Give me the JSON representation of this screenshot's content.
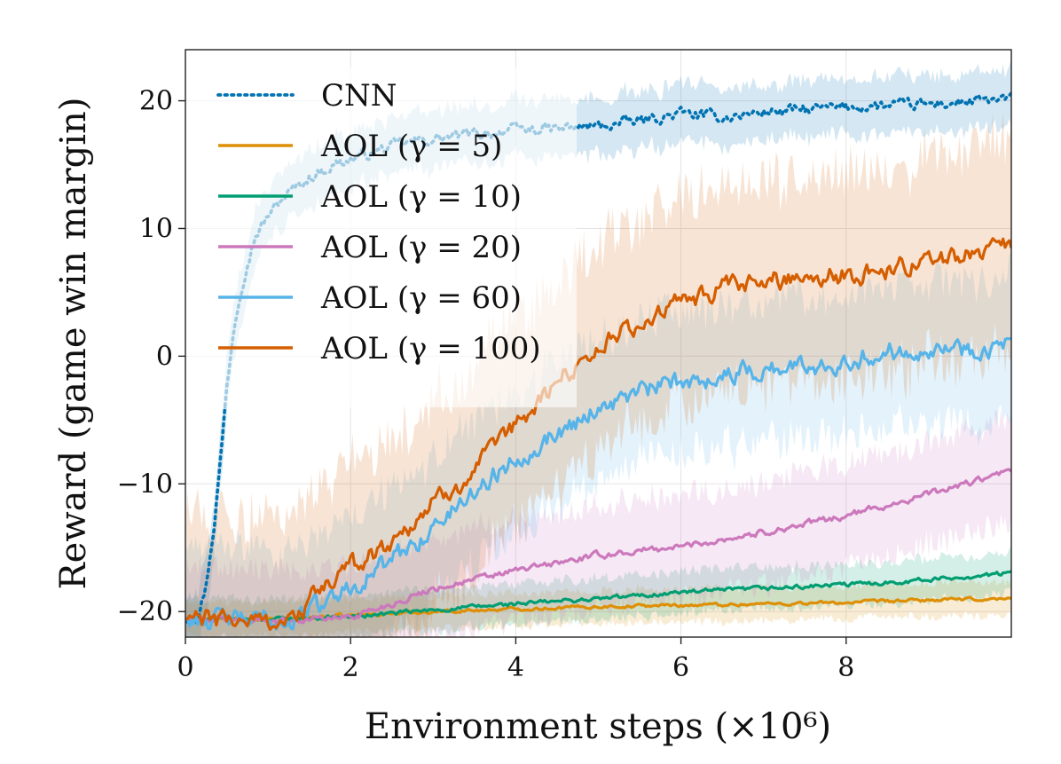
{
  "chart_data": {
    "type": "line",
    "title": "",
    "xlabel": "Environment steps (×10⁶)",
    "ylabel": "Reward (game win margin)",
    "xlim": [
      0,
      10
    ],
    "ylim": [
      -22,
      24
    ],
    "xticks": [
      {
        "value": 0,
        "label": "0"
      },
      {
        "value": 2,
        "label": "2"
      },
      {
        "value": 4,
        "label": "4"
      },
      {
        "value": 6,
        "label": "6"
      },
      {
        "value": 8,
        "label": "8"
      }
    ],
    "yticks": [
      {
        "value": -20,
        "label": "−20"
      },
      {
        "value": -10,
        "label": "−10"
      },
      {
        "value": 0,
        "label": "0"
      },
      {
        "value": 10,
        "label": "10"
      },
      {
        "value": 20,
        "label": "20"
      }
    ],
    "grid": true,
    "legend_position": "top-left",
    "series": [
      {
        "name": "CNN",
        "color": "#0173b2",
        "style": "dotted",
        "noise": 0.5,
        "band": 2.2,
        "points": [
          [
            0,
            -20.5
          ],
          [
            0.15,
            -20.3
          ],
          [
            0.25,
            -18
          ],
          [
            0.35,
            -13
          ],
          [
            0.42,
            -8.5
          ],
          [
            0.5,
            -2.5
          ],
          [
            0.58,
            2
          ],
          [
            0.66,
            5
          ],
          [
            0.75,
            7.5
          ],
          [
            0.85,
            9.5
          ],
          [
            1.0,
            11
          ],
          [
            1.2,
            12.5
          ],
          [
            1.5,
            14
          ],
          [
            1.8,
            15
          ],
          [
            2.2,
            15.8
          ],
          [
            2.6,
            16.6
          ],
          [
            3.0,
            17
          ],
          [
            3.5,
            17.4
          ],
          [
            4.0,
            17.7
          ],
          [
            4.5,
            17.8
          ],
          [
            5.0,
            18
          ],
          [
            5.5,
            18.4
          ],
          [
            6.0,
            19
          ],
          [
            6.5,
            18.7
          ],
          [
            7.0,
            19.1
          ],
          [
            7.5,
            19.3
          ],
          [
            8.0,
            19.5
          ],
          [
            8.5,
            19.6
          ],
          [
            9.0,
            19.7
          ],
          [
            9.5,
            19.9
          ],
          [
            10,
            20.1
          ]
        ]
      },
      {
        "name": "AOL (γ = 5)",
        "color": "#de8f05",
        "style": "solid",
        "noise": 0.15,
        "band": 1.3,
        "points": [
          [
            0,
            -20.6
          ],
          [
            1.0,
            -20.6
          ],
          [
            2.0,
            -20.3
          ],
          [
            3.0,
            -20.0
          ],
          [
            4.0,
            -19.8
          ],
          [
            5.0,
            -19.6
          ],
          [
            6.0,
            -19.5
          ],
          [
            7.0,
            -19.4
          ],
          [
            8.0,
            -19.3
          ],
          [
            9.0,
            -19.1
          ],
          [
            10,
            -19.0
          ]
        ]
      },
      {
        "name": "AOL (γ = 10)",
        "color": "#029e73",
        "style": "solid",
        "noise": 0.2,
        "band": 1.6,
        "points": [
          [
            0,
            -20.6
          ],
          [
            1.0,
            -20.6
          ],
          [
            2.0,
            -20.4
          ],
          [
            3.0,
            -19.9
          ],
          [
            4.0,
            -19.4
          ],
          [
            5.0,
            -19.0
          ],
          [
            6.0,
            -18.5
          ],
          [
            7.0,
            -18.2
          ],
          [
            8.0,
            -17.9
          ],
          [
            9.0,
            -17.5
          ],
          [
            10,
            -17.0
          ]
        ]
      },
      {
        "name": "AOL (γ = 20)",
        "color": "#cc78bc",
        "style": "solid",
        "noise": 0.3,
        "band": 4.0,
        "points": [
          [
            0,
            -20.6
          ],
          [
            1.2,
            -20.7
          ],
          [
            2.0,
            -20.4
          ],
          [
            2.5,
            -19.4
          ],
          [
            3.0,
            -18.2
          ],
          [
            4.0,
            -16.8
          ],
          [
            5.0,
            -15.6
          ],
          [
            6.0,
            -14.9
          ],
          [
            7.0,
            -13.8
          ],
          [
            8.0,
            -12.5
          ],
          [
            9.0,
            -10.8
          ],
          [
            10,
            -9.0
          ]
        ]
      },
      {
        "name": "AOL (γ = 60)",
        "color": "#56b4e9",
        "style": "solid",
        "noise": 0.9,
        "band": 5.5,
        "points": [
          [
            0,
            -20.6
          ],
          [
            1.3,
            -20.7
          ],
          [
            1.6,
            -19.5
          ],
          [
            2.0,
            -18
          ],
          [
            2.5,
            -16
          ],
          [
            3.0,
            -13.5
          ],
          [
            3.5,
            -10.5
          ],
          [
            4.0,
            -8
          ],
          [
            4.5,
            -6
          ],
          [
            5.0,
            -4
          ],
          [
            5.5,
            -2.8
          ],
          [
            6.0,
            -2
          ],
          [
            6.5,
            -1.5
          ],
          [
            7.0,
            -1
          ],
          [
            7.5,
            -0.8
          ],
          [
            8.0,
            -0.3
          ],
          [
            8.5,
            0.3
          ],
          [
            9.0,
            0.8
          ],
          [
            9.5,
            0.5
          ],
          [
            10,
            1.0
          ]
        ]
      },
      {
        "name": "AOL (γ = 100)",
        "color": "#d55e00",
        "style": "solid",
        "noise": 0.9,
        "band": 8.0,
        "points": [
          [
            0,
            -20.6
          ],
          [
            1.3,
            -20.7
          ],
          [
            1.6,
            -18.5
          ],
          [
            2.0,
            -16.5
          ],
          [
            2.5,
            -14.5
          ],
          [
            3.0,
            -11.5
          ],
          [
            3.5,
            -9
          ],
          [
            4.0,
            -5.5
          ],
          [
            4.5,
            -2
          ],
          [
            5.0,
            0.8
          ],
          [
            5.5,
            2.5
          ],
          [
            6.0,
            4.2
          ],
          [
            6.5,
            5.2
          ],
          [
            7.0,
            5.8
          ],
          [
            7.5,
            6.4
          ],
          [
            8.0,
            6.3
          ],
          [
            8.5,
            6.8
          ],
          [
            9.0,
            7.4
          ],
          [
            9.5,
            8.2
          ],
          [
            10,
            9.0
          ]
        ]
      }
    ]
  }
}
